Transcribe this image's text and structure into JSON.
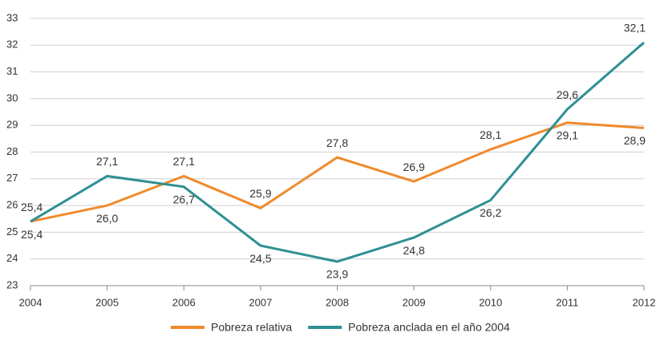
{
  "chart_data": {
    "type": "line",
    "categories": [
      "2004",
      "2005",
      "2006",
      "2007",
      "2008",
      "2009",
      "2010",
      "2011",
      "2012"
    ],
    "series": [
      {
        "name": "Pobreza relativa",
        "color": "#f08a2c",
        "values": [
          25.4,
          26.0,
          27.1,
          25.9,
          27.8,
          26.9,
          28.1,
          29.1,
          28.9
        ],
        "value_labels": [
          "25,4",
          "26,0",
          "27,1",
          "25,9",
          "27,8",
          "26,9",
          "28,1",
          "29,1",
          "28,9"
        ]
      },
      {
        "name": "Pobreza anclada en el año 2004",
        "color": "#2e9094",
        "values": [
          25.4,
          27.1,
          26.7,
          24.5,
          23.9,
          24.8,
          26.2,
          29.6,
          32.1
        ],
        "value_labels": [
          "25,4",
          "27,1",
          "26,7",
          "24,5",
          "23,9",
          "24,8",
          "26,2",
          "29,6",
          "32,1"
        ]
      }
    ],
    "ylim": [
      23,
      33
    ],
    "yticks": [
      23,
      24,
      25,
      26,
      27,
      28,
      29,
      30,
      31,
      32,
      33
    ],
    "grid": true,
    "legend": "bottom"
  }
}
